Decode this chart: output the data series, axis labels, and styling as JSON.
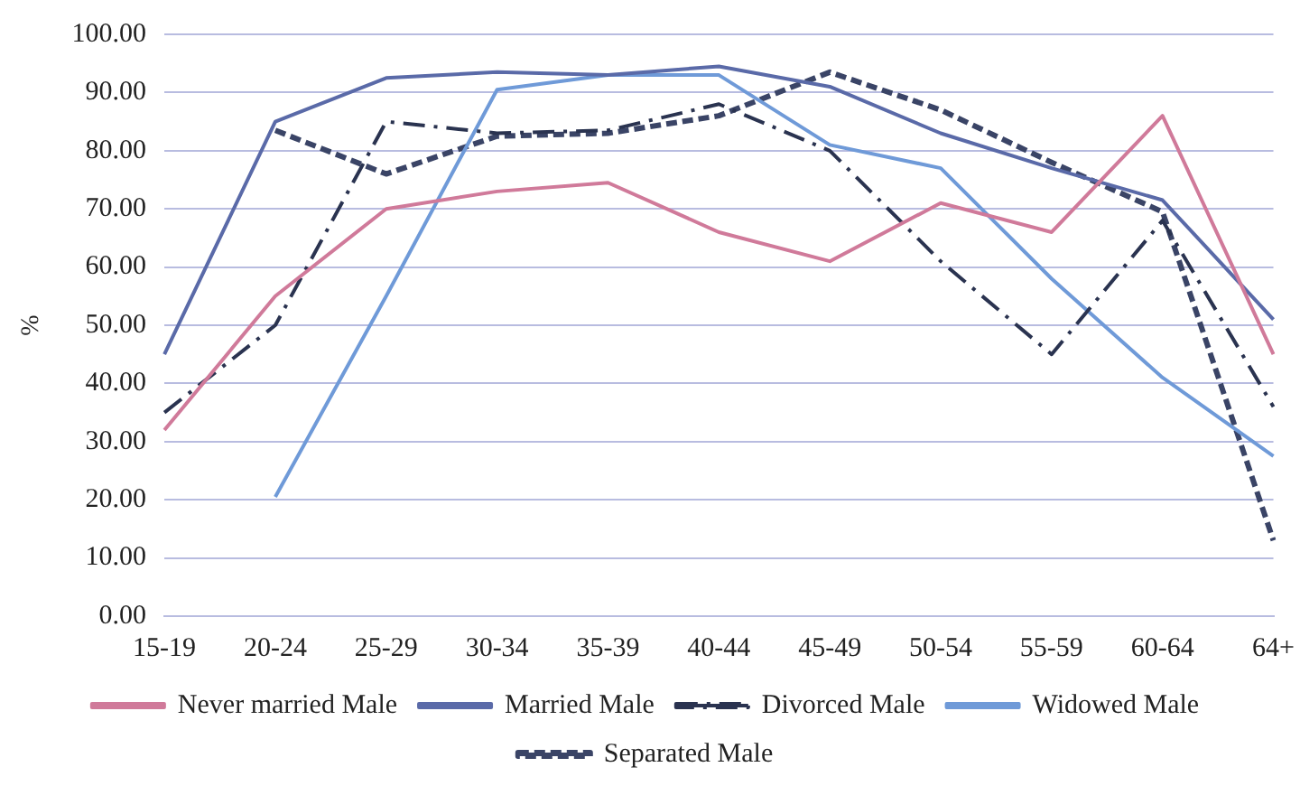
{
  "chart_data": {
    "type": "line",
    "ylabel": "%",
    "categories": [
      "15-19",
      "20-24",
      "25-29",
      "30-34",
      "35-39",
      "40-44",
      "45-49",
      "50-54",
      "55-59",
      "60-64",
      "64+"
    ],
    "series": [
      {
        "name": "Never married Male",
        "color": "#d07a9a",
        "line_style": "solid",
        "values": [
          32,
          55,
          70,
          73,
          74.5,
          66,
          61,
          71,
          66,
          86,
          45
        ]
      },
      {
        "name": "Married Male",
        "color": "#5a6aa8",
        "line_style": "solid",
        "values": [
          45,
          85,
          92.5,
          93.5,
          93,
          94.5,
          91,
          83,
          77,
          71.5,
          51
        ]
      },
      {
        "name": "Divorced Male",
        "color": "#2a3350",
        "line_style": "dashdot",
        "values": [
          35,
          50,
          85,
          83,
          83.5,
          88,
          80,
          61,
          45,
          68,
          36
        ]
      },
      {
        "name": "Widowed Male",
        "color": "#6f9ad8",
        "line_style": "solid",
        "values": [
          null,
          20.5,
          55,
          90.5,
          93,
          93,
          81,
          77,
          58,
          41,
          27.5
        ]
      },
      {
        "name": "Separated Male",
        "color": "#3a4466",
        "line_style": "dashed",
        "values": [
          null,
          83.5,
          76,
          82.5,
          83,
          86,
          93.5,
          87,
          78,
          69.5,
          13
        ]
      }
    ],
    "ylim": [
      0,
      100
    ],
    "yticks": [
      {
        "value": 0,
        "label": "0.00"
      },
      {
        "value": 10,
        "label": "10.00"
      },
      {
        "value": 20,
        "label": "20.00"
      },
      {
        "value": 30,
        "label": "30.00"
      },
      {
        "value": 40,
        "label": "40.00"
      },
      {
        "value": 50,
        "label": "50.00"
      },
      {
        "value": 60,
        "label": "60.00"
      },
      {
        "value": 70,
        "label": "70.00"
      },
      {
        "value": 80,
        "label": "80.00"
      },
      {
        "value": 90,
        "label": "90.00"
      },
      {
        "value": 100,
        "label": "100.00"
      }
    ],
    "grid": "y",
    "legend": "bottom",
    "marker": "none"
  }
}
